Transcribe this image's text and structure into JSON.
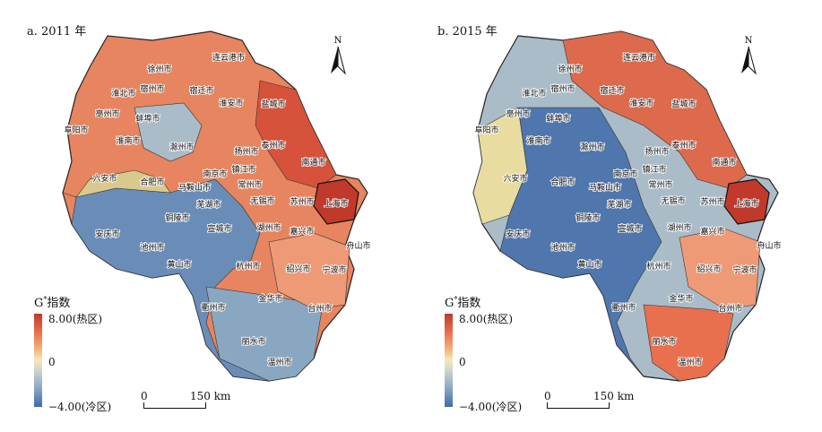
{
  "panels": [
    {
      "title": "a. 2011 年",
      "id": "a"
    },
    {
      "title": "b. 2015 年",
      "id": "b"
    }
  ],
  "legend": {
    "title_main": "G",
    "title_sup": "*",
    "title_rest": "指数",
    "max_label": "8.00(热区)",
    "mid_label": "0",
    "min_label": "−4.00(冷区)"
  },
  "scale_bar": {
    "start": "0",
    "end": "150 km"
  },
  "north_label": "N",
  "cities": [
    "连云港市",
    "徐州市",
    "宿州市",
    "淮北市",
    "宿迁市",
    "盐城市",
    "淮安市",
    "亳州市",
    "蚌埠市",
    "阜阳市",
    "淮南市",
    "滁州市",
    "扬州市",
    "泰州市",
    "南通市",
    "南京市",
    "镇江市",
    "六安市",
    "合肥市",
    "马鞍山市",
    "常州市",
    "无锡市",
    "芜湖市",
    "苏州市",
    "上海市",
    "铜陵市",
    "宣城市",
    "安庆市",
    "湖州市",
    "嘉兴市",
    "池州市",
    "黄山市",
    "杭州市",
    "舟山市",
    "绍兴市",
    "宁波市",
    "金华市",
    "衢州市",
    "台州市",
    "丽水市",
    "温州市"
  ],
  "colors": {
    "hot": "#c0392b",
    "cold": "#3f6aa8",
    "neutral": "#f6e9b8"
  }
}
